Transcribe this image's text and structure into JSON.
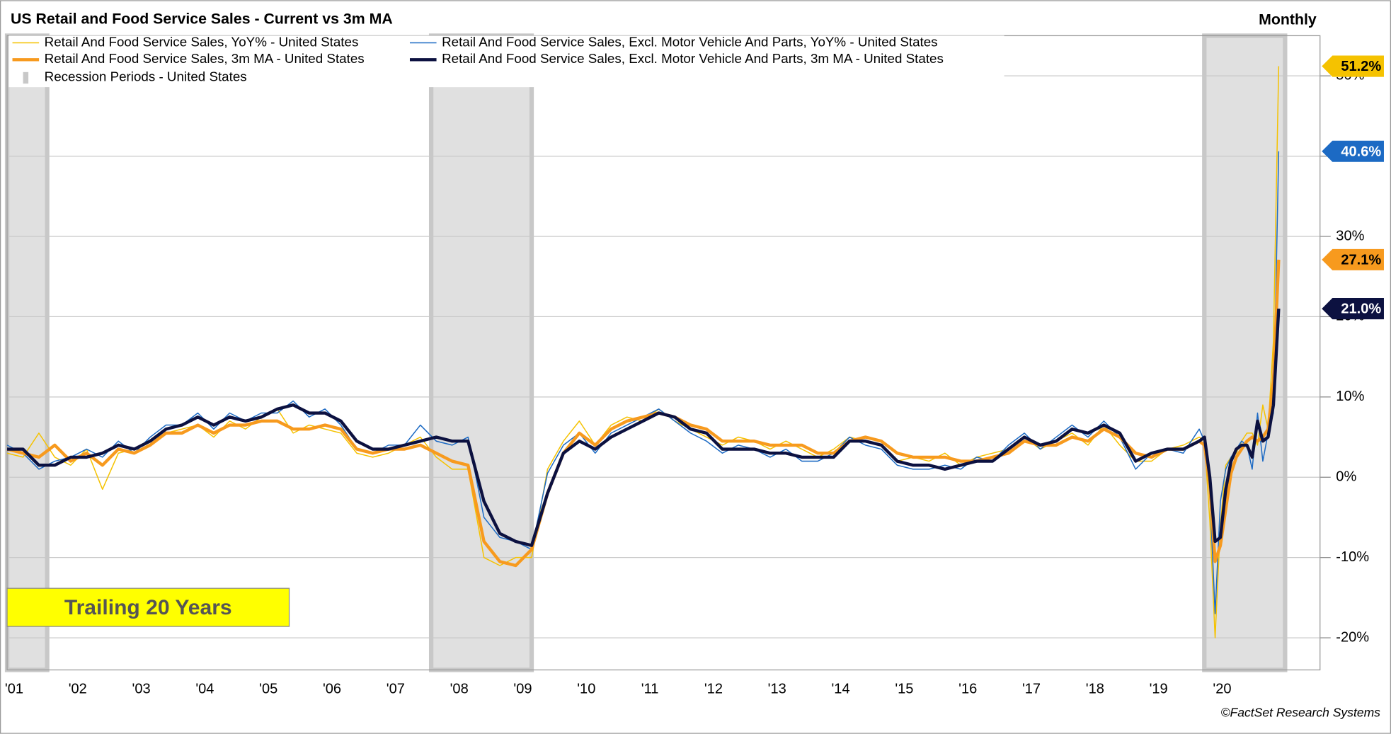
{
  "chart_data": {
    "type": "line",
    "title": "US Retail and Food Service Sales - Current vs 3m MA",
    "subtitle": "Monthly",
    "annotation": "Trailing 20 Years",
    "source": "©FactSet Research Systems",
    "recession_name": "Recession Periods - United States",
    "recession_color": "#e0e0e0",
    "recessions": [
      [
        2001.17,
        2001.88
      ],
      [
        2007.92,
        2009.5
      ],
      [
        2020.08,
        2021.35
      ]
    ],
    "x": [
      2001.25,
      2001.5,
      2001.75,
      2002,
      2002.25,
      2002.5,
      2002.75,
      2003,
      2003.25,
      2003.5,
      2003.75,
      2004,
      2004.25,
      2004.5,
      2004.75,
      2005,
      2005.25,
      2005.5,
      2005.75,
      2006,
      2006.25,
      2006.5,
      2006.75,
      2007,
      2007.25,
      2007.5,
      2007.75,
      2008,
      2008.25,
      2008.5,
      2008.75,
      2009,
      2009.25,
      2009.5,
      2009.75,
      2010,
      2010.25,
      2010.5,
      2010.75,
      2011,
      2011.25,
      2011.5,
      2011.75,
      2012,
      2012.25,
      2012.5,
      2012.75,
      2013,
      2013.25,
      2013.5,
      2013.75,
      2014,
      2014.25,
      2014.5,
      2014.75,
      2015,
      2015.25,
      2015.5,
      2015.75,
      2016,
      2016.25,
      2016.5,
      2016.75,
      2017,
      2017.25,
      2017.5,
      2017.75,
      2018,
      2018.25,
      2018.5,
      2018.75,
      2019,
      2019.25,
      2019.5,
      2019.75,
      2020,
      2020.083,
      2020.167,
      2020.25,
      2020.333,
      2020.417,
      2020.5,
      2020.583,
      2020.667,
      2020.75,
      2020.833,
      2020.917,
      2021,
      2021.083,
      2021.167,
      2021.25
    ],
    "xlim": [
      2001.25,
      2021.9
    ],
    "xticks": [
      {
        "value": 2001.5,
        "label": "'01"
      },
      {
        "value": 2002.5,
        "label": "'02"
      },
      {
        "value": 2003.5,
        "label": "'03"
      },
      {
        "value": 2004.5,
        "label": "'04"
      },
      {
        "value": 2005.5,
        "label": "'05"
      },
      {
        "value": 2006.5,
        "label": "'06"
      },
      {
        "value": 2007.5,
        "label": "'07"
      },
      {
        "value": 2008.5,
        "label": "'08"
      },
      {
        "value": 2009.5,
        "label": "'09"
      },
      {
        "value": 2010.5,
        "label": "'10"
      },
      {
        "value": 2011.5,
        "label": "'11"
      },
      {
        "value": 2012.5,
        "label": "'12"
      },
      {
        "value": 2013.5,
        "label": "'13"
      },
      {
        "value": 2014.5,
        "label": "'14"
      },
      {
        "value": 2015.5,
        "label": "'15"
      },
      {
        "value": 2016.5,
        "label": "'16"
      },
      {
        "value": 2017.5,
        "label": "'17"
      },
      {
        "value": 2018.5,
        "label": "'18"
      },
      {
        "value": 2019.5,
        "label": "'19"
      },
      {
        "value": 2020.5,
        "label": "'20"
      }
    ],
    "ylim": [
      -24,
      55
    ],
    "yticks": [
      {
        "value": -20,
        "label": "-20%"
      },
      {
        "value": -10,
        "label": "-10%"
      },
      {
        "value": 0,
        "label": "0%"
      },
      {
        "value": 10,
        "label": "10%"
      },
      {
        "value": 20,
        "label": "20%"
      },
      {
        "value": 30,
        "label": "30%"
      },
      {
        "value": 40,
        "label": "40%"
      },
      {
        "value": 50,
        "label": "50%"
      }
    ],
    "grid": true,
    "series": [
      {
        "name": "Retail And Food Service Sales, YoY% - United States",
        "color": "#f5c200",
        "width": 1.2,
        "end_label": "51.2%",
        "label_text_color": "#000000",
        "values": [
          3.0,
          2.5,
          5.5,
          2.5,
          1.5,
          3.5,
          -1.5,
          3.0,
          3.5,
          4.5,
          5.5,
          6.0,
          6.5,
          5.0,
          7.0,
          6.0,
          7.5,
          8.5,
          5.5,
          6.5,
          6.0,
          5.5,
          3.0,
          2.5,
          3.0,
          4.0,
          5.0,
          2.5,
          1.0,
          1.0,
          -10.0,
          -11.0,
          -10.0,
          -10.0,
          1.0,
          4.5,
          7.0,
          4.0,
          6.5,
          7.5,
          7.0,
          8.5,
          7.0,
          6.0,
          5.0,
          4.0,
          5.0,
          4.5,
          3.5,
          4.5,
          3.5,
          2.5,
          3.5,
          5.0,
          4.5,
          4.0,
          2.0,
          2.5,
          2.0,
          3.0,
          1.5,
          2.5,
          3.0,
          3.5,
          5.0,
          3.5,
          4.5,
          5.5,
          4.0,
          6.5,
          4.0,
          2.0,
          2.0,
          3.5,
          4.0,
          5.0,
          4.5,
          -5.5,
          -20.0,
          -6.0,
          1.5,
          2.5,
          3.0,
          4.5,
          5.5,
          5.5,
          4.0,
          9.0,
          6.0,
          17.0,
          51.2
        ]
      },
      {
        "name": "Retail And Food Service Sales, Excl. Motor Vehicle And Parts, YoY% - United States",
        "color": "#1c6ac4",
        "width": 1.2,
        "end_label": "40.6%",
        "label_text_color": "#ffffff",
        "values": [
          4.0,
          3.0,
          1.0,
          2.0,
          2.5,
          3.5,
          2.5,
          4.5,
          3.0,
          5.0,
          6.5,
          6.5,
          8.0,
          6.0,
          8.0,
          7.0,
          8.0,
          8.0,
          9.5,
          7.5,
          8.5,
          6.5,
          3.5,
          3.0,
          4.0,
          4.0,
          6.5,
          4.5,
          4.0,
          5.0,
          -5.0,
          -7.5,
          -8.0,
          -9.0,
          0.5,
          4.0,
          5.5,
          3.0,
          5.5,
          6.5,
          7.5,
          8.5,
          7.0,
          5.5,
          4.5,
          3.0,
          4.0,
          3.5,
          2.5,
          3.5,
          2.0,
          2.0,
          3.0,
          5.0,
          4.0,
          3.5,
          1.5,
          1.0,
          1.0,
          1.5,
          1.0,
          2.5,
          2.0,
          4.0,
          5.5,
          3.5,
          5.0,
          6.5,
          5.0,
          7.0,
          5.0,
          1.0,
          3.0,
          3.5,
          3.0,
          6.0,
          4.5,
          -2.0,
          -17.0,
          -3.0,
          1.0,
          2.5,
          3.5,
          4.5,
          4.0,
          1.0,
          8.0,
          2.0,
          5.5,
          8.0,
          40.6
        ]
      },
      {
        "name": "Retail And Food Service Sales, 3m MA - United States",
        "color": "#f79a1e",
        "width": 3.5,
        "end_label": "27.1%",
        "label_text_color": "#000000",
        "values": [
          3.5,
          3.0,
          2.5,
          4.0,
          2.0,
          3.0,
          1.5,
          3.5,
          3.0,
          4.0,
          5.5,
          5.5,
          6.5,
          5.5,
          6.5,
          6.5,
          7.0,
          7.0,
          6.0,
          6.0,
          6.5,
          6.0,
          3.5,
          3.0,
          3.5,
          3.5,
          4.0,
          3.0,
          2.0,
          1.5,
          -8.0,
          -10.5,
          -11.0,
          -9.0,
          -2.0,
          3.0,
          5.5,
          4.0,
          6.0,
          7.0,
          7.5,
          8.0,
          7.5,
          6.5,
          6.0,
          4.5,
          4.5,
          4.5,
          4.0,
          4.0,
          4.0,
          3.0,
          3.0,
          4.5,
          5.0,
          4.5,
          3.0,
          2.5,
          2.5,
          2.5,
          2.0,
          2.0,
          2.5,
          3.0,
          4.5,
          4.0,
          4.0,
          5.0,
          4.5,
          6.0,
          5.0,
          3.0,
          2.5,
          3.5,
          3.5,
          4.5,
          4.0,
          -1.0,
          -10.5,
          -8.5,
          -4.0,
          0.5,
          2.5,
          3.5,
          4.5,
          5.0,
          4.5,
          5.0,
          6.0,
          12.0,
          27.1
        ]
      },
      {
        "name": "Retail And Food Service Sales, Excl. Motor Vehicle And Parts, 3m MA - United States",
        "color": "#0c1140",
        "width": 3.5,
        "end_label": "21.0%",
        "label_text_color": "#ffffff",
        "values": [
          3.5,
          3.5,
          1.5,
          1.5,
          2.5,
          2.5,
          3.0,
          4.0,
          3.5,
          4.5,
          6.0,
          6.5,
          7.5,
          6.5,
          7.5,
          7.0,
          7.5,
          8.5,
          9.0,
          8.0,
          8.0,
          7.0,
          4.5,
          3.5,
          3.5,
          4.0,
          4.5,
          5.0,
          4.5,
          4.5,
          -3.0,
          -7.0,
          -8.0,
          -8.5,
          -2.0,
          3.0,
          4.5,
          3.5,
          5.0,
          6.0,
          7.0,
          8.0,
          7.5,
          6.0,
          5.5,
          3.5,
          3.5,
          3.5,
          3.0,
          3.0,
          2.5,
          2.5,
          2.5,
          4.5,
          4.5,
          4.0,
          2.0,
          1.5,
          1.5,
          1.0,
          1.5,
          2.0,
          2.0,
          3.5,
          5.0,
          4.0,
          4.5,
          6.0,
          5.5,
          6.5,
          5.5,
          2.0,
          3.0,
          3.5,
          3.5,
          4.5,
          5.0,
          0.0,
          -8.0,
          -7.5,
          -1.5,
          2.0,
          3.5,
          4.0,
          4.0,
          2.5,
          7.0,
          4.5,
          5.0,
          9.0,
          21.0
        ]
      }
    ]
  }
}
